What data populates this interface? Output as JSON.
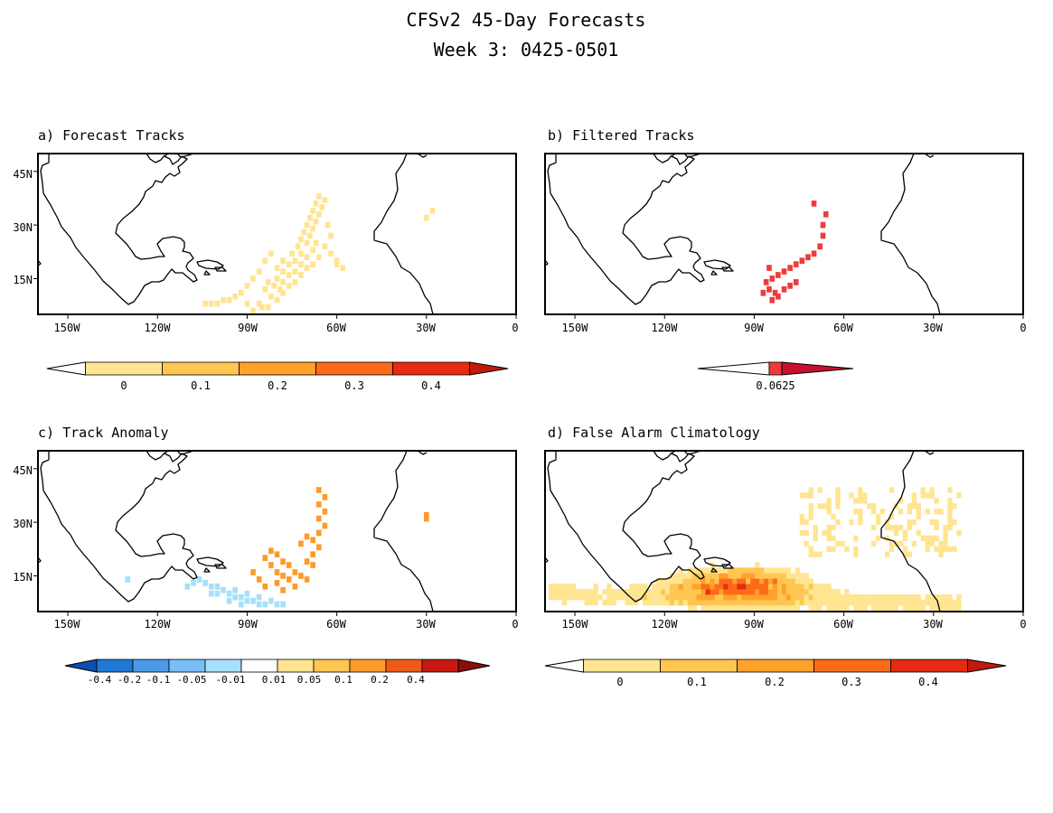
{
  "title": "CFSv2 45-Day Forecasts",
  "subtitle": "Week 3: 0425-0501",
  "panels": [
    {
      "id": "a",
      "title": "a) Forecast Tracks",
      "lat_ticks": [
        "45N",
        "30N",
        "15N"
      ],
      "lon_ticks": [
        "150W",
        "120W",
        "90W",
        "60W",
        "30W",
        "0"
      ],
      "colorbar": {
        "labels": [
          "0",
          "0.1",
          "0.2",
          "0.3",
          "0.4"
        ],
        "colors": [
          "#ffe591",
          "#ffc652",
          "#ffa12a",
          "#ff6a18",
          "#e52b11"
        ],
        "extend_low": "#ffffff",
        "extend_high": "#c11b0c"
      },
      "cells": [
        [
          -88,
          6
        ],
        [
          -85,
          7
        ],
        [
          -83,
          7
        ],
        [
          -90,
          8
        ],
        [
          -86,
          8
        ],
        [
          -80,
          9
        ],
        [
          -82,
          10
        ],
        [
          -78,
          11
        ],
        [
          -84,
          12
        ],
        [
          -79,
          12
        ],
        [
          -81,
          13
        ],
        [
          -76,
          13
        ],
        [
          -83,
          14
        ],
        [
          -78,
          14
        ],
        [
          -74,
          14
        ],
        [
          -80,
          15
        ],
        [
          -76,
          16
        ],
        [
          -72,
          16
        ],
        [
          -78,
          17
        ],
        [
          -74,
          17
        ],
        [
          -70,
          18
        ],
        [
          -80,
          18
        ],
        [
          -76,
          19
        ],
        [
          -72,
          19
        ],
        [
          -68,
          19
        ],
        [
          -78,
          20
        ],
        [
          -74,
          20
        ],
        [
          -70,
          21
        ],
        [
          -66,
          21
        ],
        [
          -75,
          22
        ],
        [
          -72,
          22
        ],
        [
          -68,
          23
        ],
        [
          -73,
          24
        ],
        [
          -70,
          25
        ],
        [
          -67,
          25
        ],
        [
          -72,
          26
        ],
        [
          -69,
          27
        ],
        [
          -71,
          28
        ],
        [
          -68,
          29
        ],
        [
          -70,
          30
        ],
        [
          -67,
          31
        ],
        [
          -69,
          32
        ],
        [
          -66,
          33
        ],
        [
          -68,
          34
        ],
        [
          -65,
          35
        ],
        [
          -67,
          36
        ],
        [
          -64,
          37
        ],
        [
          -66,
          38
        ],
        [
          -30,
          32
        ],
        [
          -28,
          34
        ],
        [
          -82,
          22
        ],
        [
          -84,
          20
        ],
        [
          -86,
          17
        ],
        [
          -88,
          15
        ],
        [
          -90,
          13
        ],
        [
          -92,
          11
        ],
        [
          -94,
          10
        ],
        [
          -96,
          9
        ],
        [
          -98,
          9
        ],
        [
          -100,
          8
        ],
        [
          -102,
          8
        ],
        [
          -104,
          8
        ],
        [
          -60,
          20
        ],
        [
          -62,
          22
        ],
        [
          -64,
          24
        ],
        [
          -62,
          27
        ],
        [
          -63,
          30
        ],
        [
          -60,
          19
        ],
        [
          -58,
          18
        ]
      ]
    },
    {
      "id": "b",
      "title": "b) Filtered Tracks",
      "lat_ticks": [
        "45N",
        "30N",
        "15N"
      ],
      "lon_ticks": [
        "150W",
        "120W",
        "90W",
        "60W",
        "30W",
        "0"
      ],
      "colorbar": {
        "labels": [
          "0.0625"
        ],
        "colors": [
          "#ef3b3b"
        ],
        "extend_low": "#ffffff",
        "extend_high": "#c8102e"
      },
      "cells": [
        [
          -85,
          12
        ],
        [
          -83,
          11
        ],
        [
          -86,
          14
        ],
        [
          -84,
          15
        ],
        [
          -82,
          16
        ],
        [
          -80,
          17
        ],
        [
          -78,
          18
        ],
        [
          -76,
          19
        ],
        [
          -74,
          20
        ],
        [
          -72,
          21
        ],
        [
          -70,
          22
        ],
        [
          -84,
          9
        ],
        [
          -82,
          10
        ],
        [
          -80,
          12
        ],
        [
          -78,
          13
        ],
        [
          -76,
          14
        ],
        [
          -68,
          24
        ],
        [
          -67,
          27
        ],
        [
          -67,
          30
        ],
        [
          -66,
          33
        ],
        [
          -70,
          36
        ],
        [
          -87,
          11
        ],
        [
          -85,
          18
        ]
      ]
    },
    {
      "id": "c",
      "title": "c) Track Anomaly",
      "lat_ticks": [
        "45N",
        "30N",
        "15N"
      ],
      "lon_ticks": [
        "150W",
        "120W",
        "90W",
        "60W",
        "30W",
        "0"
      ],
      "colorbar": {
        "labels": [
          "-0.4",
          "-0.2",
          "-0.1",
          "-0.05",
          "-0.01",
          "0.01",
          "0.05",
          "0.1",
          "0.2",
          "0.4"
        ],
        "colors": [
          "#1f78d6",
          "#4a9ae8",
          "#79bdf5",
          "#a6e0fb",
          "#ffffff",
          "#ffe591",
          "#ffc652",
          "#ff9a2a",
          "#ef5a1a",
          "#c81a12"
        ],
        "extend_low": "#0b4fb0",
        "extend_high": "#8b0d0d"
      },
      "cells_negative": [
        [
          -96,
          10
        ],
        [
          -94,
          9
        ],
        [
          -92,
          9
        ],
        [
          -90,
          8
        ],
        [
          -88,
          8
        ],
        [
          -86,
          7
        ],
        [
          -84,
          7
        ],
        [
          -98,
          11
        ],
        [
          -100,
          12
        ],
        [
          -102,
          12
        ],
        [
          -104,
          13
        ],
        [
          -94,
          11
        ],
        [
          -90,
          10
        ],
        [
          -86,
          9
        ],
        [
          -82,
          8
        ],
        [
          -80,
          7
        ],
        [
          -78,
          7
        ],
        [
          -96,
          8
        ],
        [
          -100,
          10
        ],
        [
          -102,
          10
        ],
        [
          -106,
          14
        ],
        [
          -108,
          13
        ],
        [
          -92,
          7
        ],
        [
          -130,
          14
        ],
        [
          -110,
          12
        ]
      ],
      "cells_positive": [
        [
          -82,
          22
        ],
        [
          -80,
          21
        ],
        [
          -84,
          20
        ],
        [
          -78,
          19
        ],
        [
          -82,
          18
        ],
        [
          -76,
          18
        ],
        [
          -80,
          16
        ],
        [
          -74,
          16
        ],
        [
          -78,
          15
        ],
        [
          -72,
          15
        ],
        [
          -76,
          14
        ],
        [
          -70,
          14
        ],
        [
          -80,
          13
        ],
        [
          -74,
          12
        ],
        [
          -84,
          12
        ],
        [
          -78,
          11
        ],
        [
          -86,
          14
        ],
        [
          -88,
          16
        ],
        [
          -70,
          19
        ],
        [
          -68,
          21
        ],
        [
          -66,
          23
        ],
        [
          -68,
          25
        ],
        [
          -66,
          27
        ],
        [
          -64,
          29
        ],
        [
          -66,
          31
        ],
        [
          -64,
          33
        ],
        [
          -66,
          35
        ],
        [
          -64,
          37
        ],
        [
          -66,
          39
        ],
        [
          -68,
          18
        ],
        [
          -30,
          31
        ],
        [
          -30,
          32
        ],
        [
          -72,
          24
        ],
        [
          -70,
          26
        ]
      ]
    },
    {
      "id": "d",
      "title": "d) False Alarm Climatology",
      "lat_ticks": [
        "45N",
        "30N",
        "15N"
      ],
      "lon_ticks": [
        "150W",
        "120W",
        "90W",
        "60W",
        "30W",
        "0"
      ],
      "colorbar": {
        "labels": [
          "0",
          "0.1",
          "0.2",
          "0.3",
          "0.4"
        ],
        "colors": [
          "#ffe591",
          "#ffc652",
          "#ffa12a",
          "#ff6a18",
          "#e52b11"
        ],
        "extend_low": "#ffffff",
        "extend_high": "#c11b0c"
      }
    }
  ]
}
